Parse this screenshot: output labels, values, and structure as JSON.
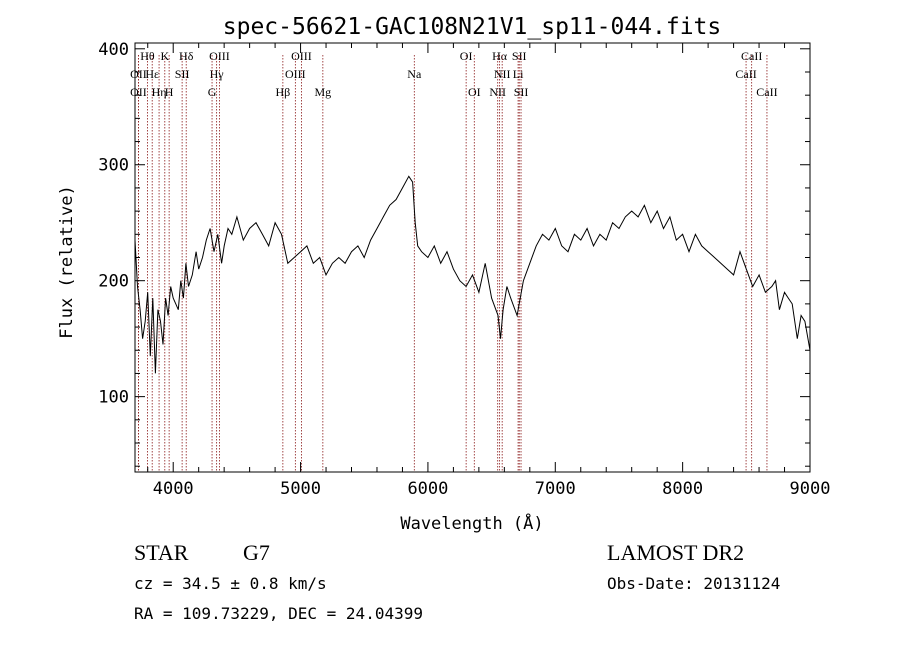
{
  "chart_data": {
    "type": "line",
    "title": "spec-56621-GAC108N21V1_sp11-044.fits",
    "xlabel": "Wavelength (Å)",
    "ylabel": "Flux (relative)",
    "xlim": [
      3700,
      9000
    ],
    "ylim": [
      35,
      405
    ],
    "xticks": [
      4000,
      5000,
      6000,
      7000,
      8000,
      9000
    ],
    "yticks": [
      100,
      200,
      300,
      400
    ],
    "grid": false,
    "series": [
      {
        "x": [
          3700,
          3720,
          3740,
          3760,
          3780,
          3800,
          3820,
          3840,
          3860,
          3880,
          3900,
          3920,
          3940,
          3960,
          3980,
          4000,
          4020,
          4040,
          4060,
          4080,
          4100,
          4120,
          4150,
          4180,
          4200,
          4230,
          4260,
          4290,
          4320,
          4350,
          4380,
          4400,
          4430,
          4460,
          4500,
          4550,
          4600,
          4650,
          4700,
          4750,
          4800,
          4850,
          4900,
          4950,
          5000,
          5050,
          5100,
          5150,
          5200,
          5250,
          5300,
          5350,
          5400,
          5450,
          5500,
          5550,
          5600,
          5650,
          5700,
          5750,
          5800,
          5850,
          5880,
          5900,
          5920,
          5950,
          6000,
          6050,
          6100,
          6150,
          6200,
          6250,
          6300,
          6350,
          6400,
          6450,
          6500,
          6550,
          6570,
          6590,
          6620,
          6650,
          6700,
          6750,
          6800,
          6850,
          6900,
          6950,
          7000,
          7050,
          7100,
          7150,
          7200,
          7250,
          7300,
          7350,
          7400,
          7450,
          7500,
          7550,
          7600,
          7650,
          7700,
          7750,
          7800,
          7850,
          7900,
          7950,
          8000,
          8050,
          8100,
          8150,
          8200,
          8250,
          8300,
          8350,
          8400,
          8450,
          8500,
          8550,
          8600,
          8650,
          8700,
          8730,
          8760,
          8800,
          8830,
          8860,
          8900,
          8930,
          8960,
          9000
        ],
        "y": [
          235,
          195,
          175,
          150,
          165,
          190,
          135,
          185,
          120,
          175,
          165,
          145,
          185,
          170,
          195,
          185,
          180,
          175,
          200,
          185,
          215,
          195,
          205,
          225,
          210,
          220,
          235,
          245,
          225,
          240,
          215,
          230,
          245,
          240,
          255,
          235,
          245,
          250,
          240,
          230,
          250,
          240,
          215,
          220,
          225,
          230,
          215,
          220,
          205,
          215,
          220,
          215,
          225,
          230,
          220,
          235,
          245,
          255,
          265,
          270,
          280,
          290,
          285,
          250,
          230,
          225,
          220,
          230,
          215,
          225,
          210,
          200,
          195,
          205,
          190,
          215,
          185,
          170,
          150,
          175,
          195,
          185,
          170,
          200,
          215,
          230,
          240,
          235,
          245,
          230,
          225,
          240,
          235,
          245,
          230,
          240,
          235,
          250,
          245,
          255,
          260,
          255,
          265,
          250,
          260,
          245,
          255,
          235,
          240,
          225,
          240,
          230,
          225,
          220,
          215,
          210,
          205,
          225,
          210,
          195,
          205,
          190,
          195,
          200,
          175,
          190,
          185,
          180,
          150,
          170,
          165,
          140
        ]
      }
    ],
    "line_marks": [
      {
        "label": "Hθ",
        "x": 3798,
        "row": 0
      },
      {
        "label": "K",
        "x": 3934,
        "row": 0
      },
      {
        "label": "Hδ",
        "x": 4102,
        "row": 0
      },
      {
        "label": "OIII",
        "x": 4363,
        "row": 0
      },
      {
        "label": "OIII",
        "x": 5007,
        "row": 0
      },
      {
        "label": "OI",
        "x": 6300,
        "row": 0
      },
      {
        "label": "Hα",
        "x": 6563,
        "row": 0
      },
      {
        "label": "SII",
        "x": 6717,
        "row": 0
      },
      {
        "label": "CaII",
        "x": 8542,
        "row": 0
      },
      {
        "label": "OII",
        "x": 3727,
        "row": 1
      },
      {
        "label": "Hε",
        "x": 3835,
        "row": 1
      },
      {
        "label": "SII",
        "x": 4070,
        "row": 1
      },
      {
        "label": "Hγ",
        "x": 4341,
        "row": 1
      },
      {
        "label": "OIII",
        "x": 4959,
        "row": 1
      },
      {
        "label": "Na",
        "x": 5893,
        "row": 1
      },
      {
        "label": "NII",
        "x": 6583,
        "row": 1
      },
      {
        "label": "Li",
        "x": 6708,
        "row": 1
      },
      {
        "label": "CaII",
        "x": 8498,
        "row": 1
      },
      {
        "label": "OII",
        "x": 3727,
        "row": 2
      },
      {
        "label": "Hη",
        "x": 3889,
        "row": 2
      },
      {
        "label": "H",
        "x": 3968,
        "row": 2
      },
      {
        "label": "G",
        "x": 4305,
        "row": 2
      },
      {
        "label": "Hβ",
        "x": 4861,
        "row": 2
      },
      {
        "label": "Mg",
        "x": 5175,
        "row": 2
      },
      {
        "label": "OI",
        "x": 6364,
        "row": 2
      },
      {
        "label": "NII",
        "x": 6548,
        "row": 2
      },
      {
        "label": "SII",
        "x": 6731,
        "row": 2
      },
      {
        "label": "CaII",
        "x": 8662,
        "row": 2
      }
    ]
  },
  "info": {
    "object_class": "STAR",
    "subclass": "G7",
    "cz": "cz = 34.5 ± 0.8 km/s",
    "coords": "RA = 109.73229, DEC =  24.04399",
    "survey": "LAMOST DR2",
    "obs_date": "Obs-Date: 20131124"
  },
  "colors": {
    "axes": "#000000",
    "spectrum": "#000000",
    "line_marks": "#8b1a1a"
  }
}
